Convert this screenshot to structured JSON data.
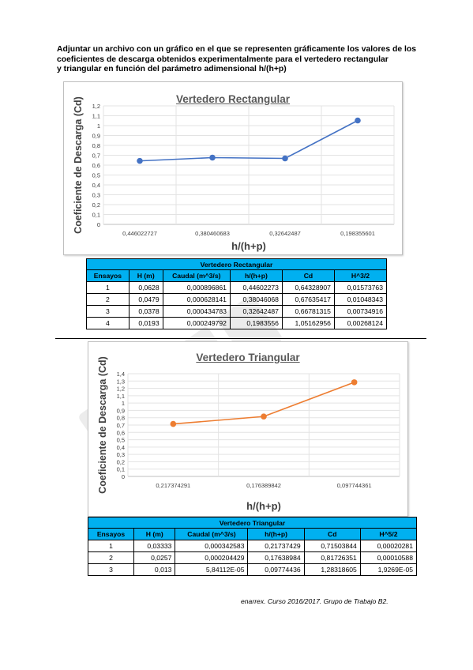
{
  "intro": {
    "line1": "Adjuntar un archivo con un gráfico en el que se representen gráficamente los valores de los",
    "line2": "coeficientes de descarga obtenidos experimentalmente para el vertedero rectangular",
    "line3": "y triangular en función del parámetro adimensional h/(h+p)"
  },
  "chart_data": [
    {
      "type": "line",
      "title": "Vertedero Rectangular",
      "xlabel": "h/(h+p)",
      "ylabel": "Coeficiente de Descarga (Cd)",
      "categories": [
        "0,446022727",
        "0,380460683",
        "0,32642487",
        "0,198355601"
      ],
      "values": [
        0.643,
        0.676,
        0.668,
        1.052
      ],
      "yticks": [
        "0",
        "0,1",
        "0,2",
        "0,3",
        "0,4",
        "0,5",
        "0,6",
        "0,7",
        "0,8",
        "0,9",
        "1",
        "1,1",
        "1,2"
      ],
      "ylim": [
        0,
        1.2
      ],
      "grid": true,
      "color": "#4472c4"
    },
    {
      "type": "line",
      "title": "Vertedero Triangular",
      "xlabel": "h/(h+p)",
      "ylabel": "Coeficiente de Descarga (Cd)",
      "categories": [
        "0,217374291",
        "0,176389842",
        "0,097744361"
      ],
      "values": [
        0.715,
        0.817,
        1.283
      ],
      "yticks": [
        "0",
        "0,1",
        "0,2",
        "0,3",
        "0,4",
        "0,5",
        "0,6",
        "0,7",
        "0,8",
        "0,9",
        "1",
        "1,1",
        "1,2",
        "1,3",
        "1,4"
      ],
      "ylim": [
        0,
        1.4
      ],
      "grid": true,
      "color": "#ed7d31"
    }
  ],
  "table_rect": {
    "caption": "Vertedero Rectangular",
    "headers": [
      "Ensayos",
      "H (m)",
      "Caudal (m^3/s)",
      "h/(h+p)",
      "Cd",
      "H^3/2"
    ],
    "rows": [
      [
        "1",
        "0,0628",
        "0,000896861",
        "0,44602273",
        "0,64328907",
        "0,01573763"
      ],
      [
        "2",
        "0,0479",
        "0,000628141",
        "0,38046068",
        "0,67635417",
        "0,01048343"
      ],
      [
        "3",
        "0,0378",
        "0,000434783",
        "0,32642487",
        "0,66781315",
        "0,00734916"
      ],
      [
        "4",
        "0,0193",
        "0,000249792",
        "0,1983556",
        "1,05162956",
        "0,00268124"
      ]
    ]
  },
  "table_tri": {
    "caption": "Vertedero Triangular",
    "headers": [
      "Ensayos",
      "H (m)",
      "Caudal (m^3/s)",
      "h/(h+p)",
      "Cd",
      "H^5/2"
    ],
    "rows": [
      [
        "1",
        "0,03333",
        "0,000342583",
        "0,21737429",
        "0,71503844",
        "0,00020281"
      ],
      [
        "2",
        "0,0257",
        "0,000204429",
        "0,17638984",
        "0,81726351",
        "0,00010588"
      ],
      [
        "3",
        "0,013",
        "5,84112E-05",
        "0,09774436",
        "1,28318605",
        "1,9269E-05"
      ]
    ]
  },
  "footer": "enarrex. Curso 2016/2017. Grupo de Trabajo B2."
}
